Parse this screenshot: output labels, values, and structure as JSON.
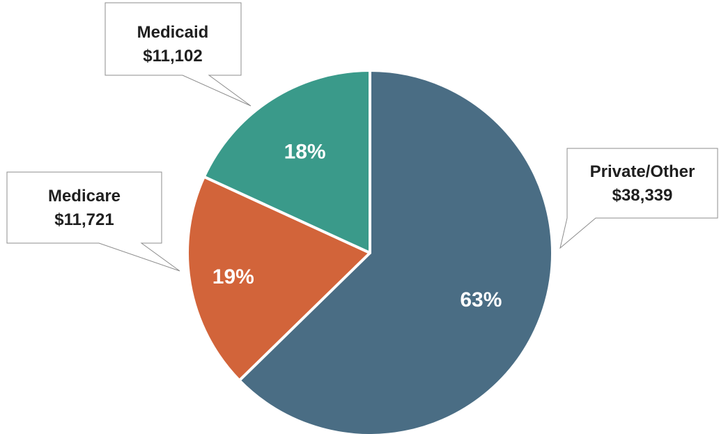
{
  "chart_data": {
    "type": "pie",
    "start_angle_deg": 0,
    "direction": "clockwise",
    "slices": [
      {
        "key": "private",
        "label": "Private/Other",
        "amount": "$38,339",
        "value": 38339,
        "percent_label": "63%",
        "color": "#4a6d84"
      },
      {
        "key": "medicare",
        "label": "Medicare",
        "amount": "$11,721",
        "value": 11721,
        "percent_label": "19%",
        "color": "#d2643a"
      },
      {
        "key": "medicaid",
        "label": "Medicaid",
        "amount": "$11,102",
        "value": 11102,
        "percent_label": "18%",
        "color": "#3a9a8a"
      }
    ]
  }
}
